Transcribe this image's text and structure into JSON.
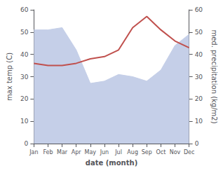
{
  "chart_data": {
    "type": "line",
    "xlabel": "date (month)",
    "ylabel": "max temp (C)",
    "y2label": "med. precipitation (kg/m2)",
    "categories": [
      "Jan",
      "Feb",
      "Mar",
      "Apr",
      "May",
      "Jun",
      "Jul",
      "Aug",
      "Sep",
      "Oct",
      "Nov",
      "Dec"
    ],
    "series": [
      {
        "type": "area",
        "color": "#c5cfe8",
        "axis": "y2",
        "values": [
          51,
          51,
          52,
          42,
          27,
          28,
          31,
          30,
          28,
          33,
          44,
          49
        ]
      },
      {
        "type": "line",
        "color": "#c0504d",
        "values": [
          36,
          35,
          35,
          36,
          38,
          39,
          42,
          52,
          57,
          51,
          46,
          43
        ]
      }
    ],
    "ylim": [
      0,
      60
    ],
    "yticks": [
      0,
      10,
      20,
      30,
      40,
      50,
      60
    ],
    "y2lim": [
      0,
      60
    ],
    "y2ticks": [
      0,
      10,
      20,
      30,
      40,
      50,
      60
    ],
    "grid": false
  }
}
